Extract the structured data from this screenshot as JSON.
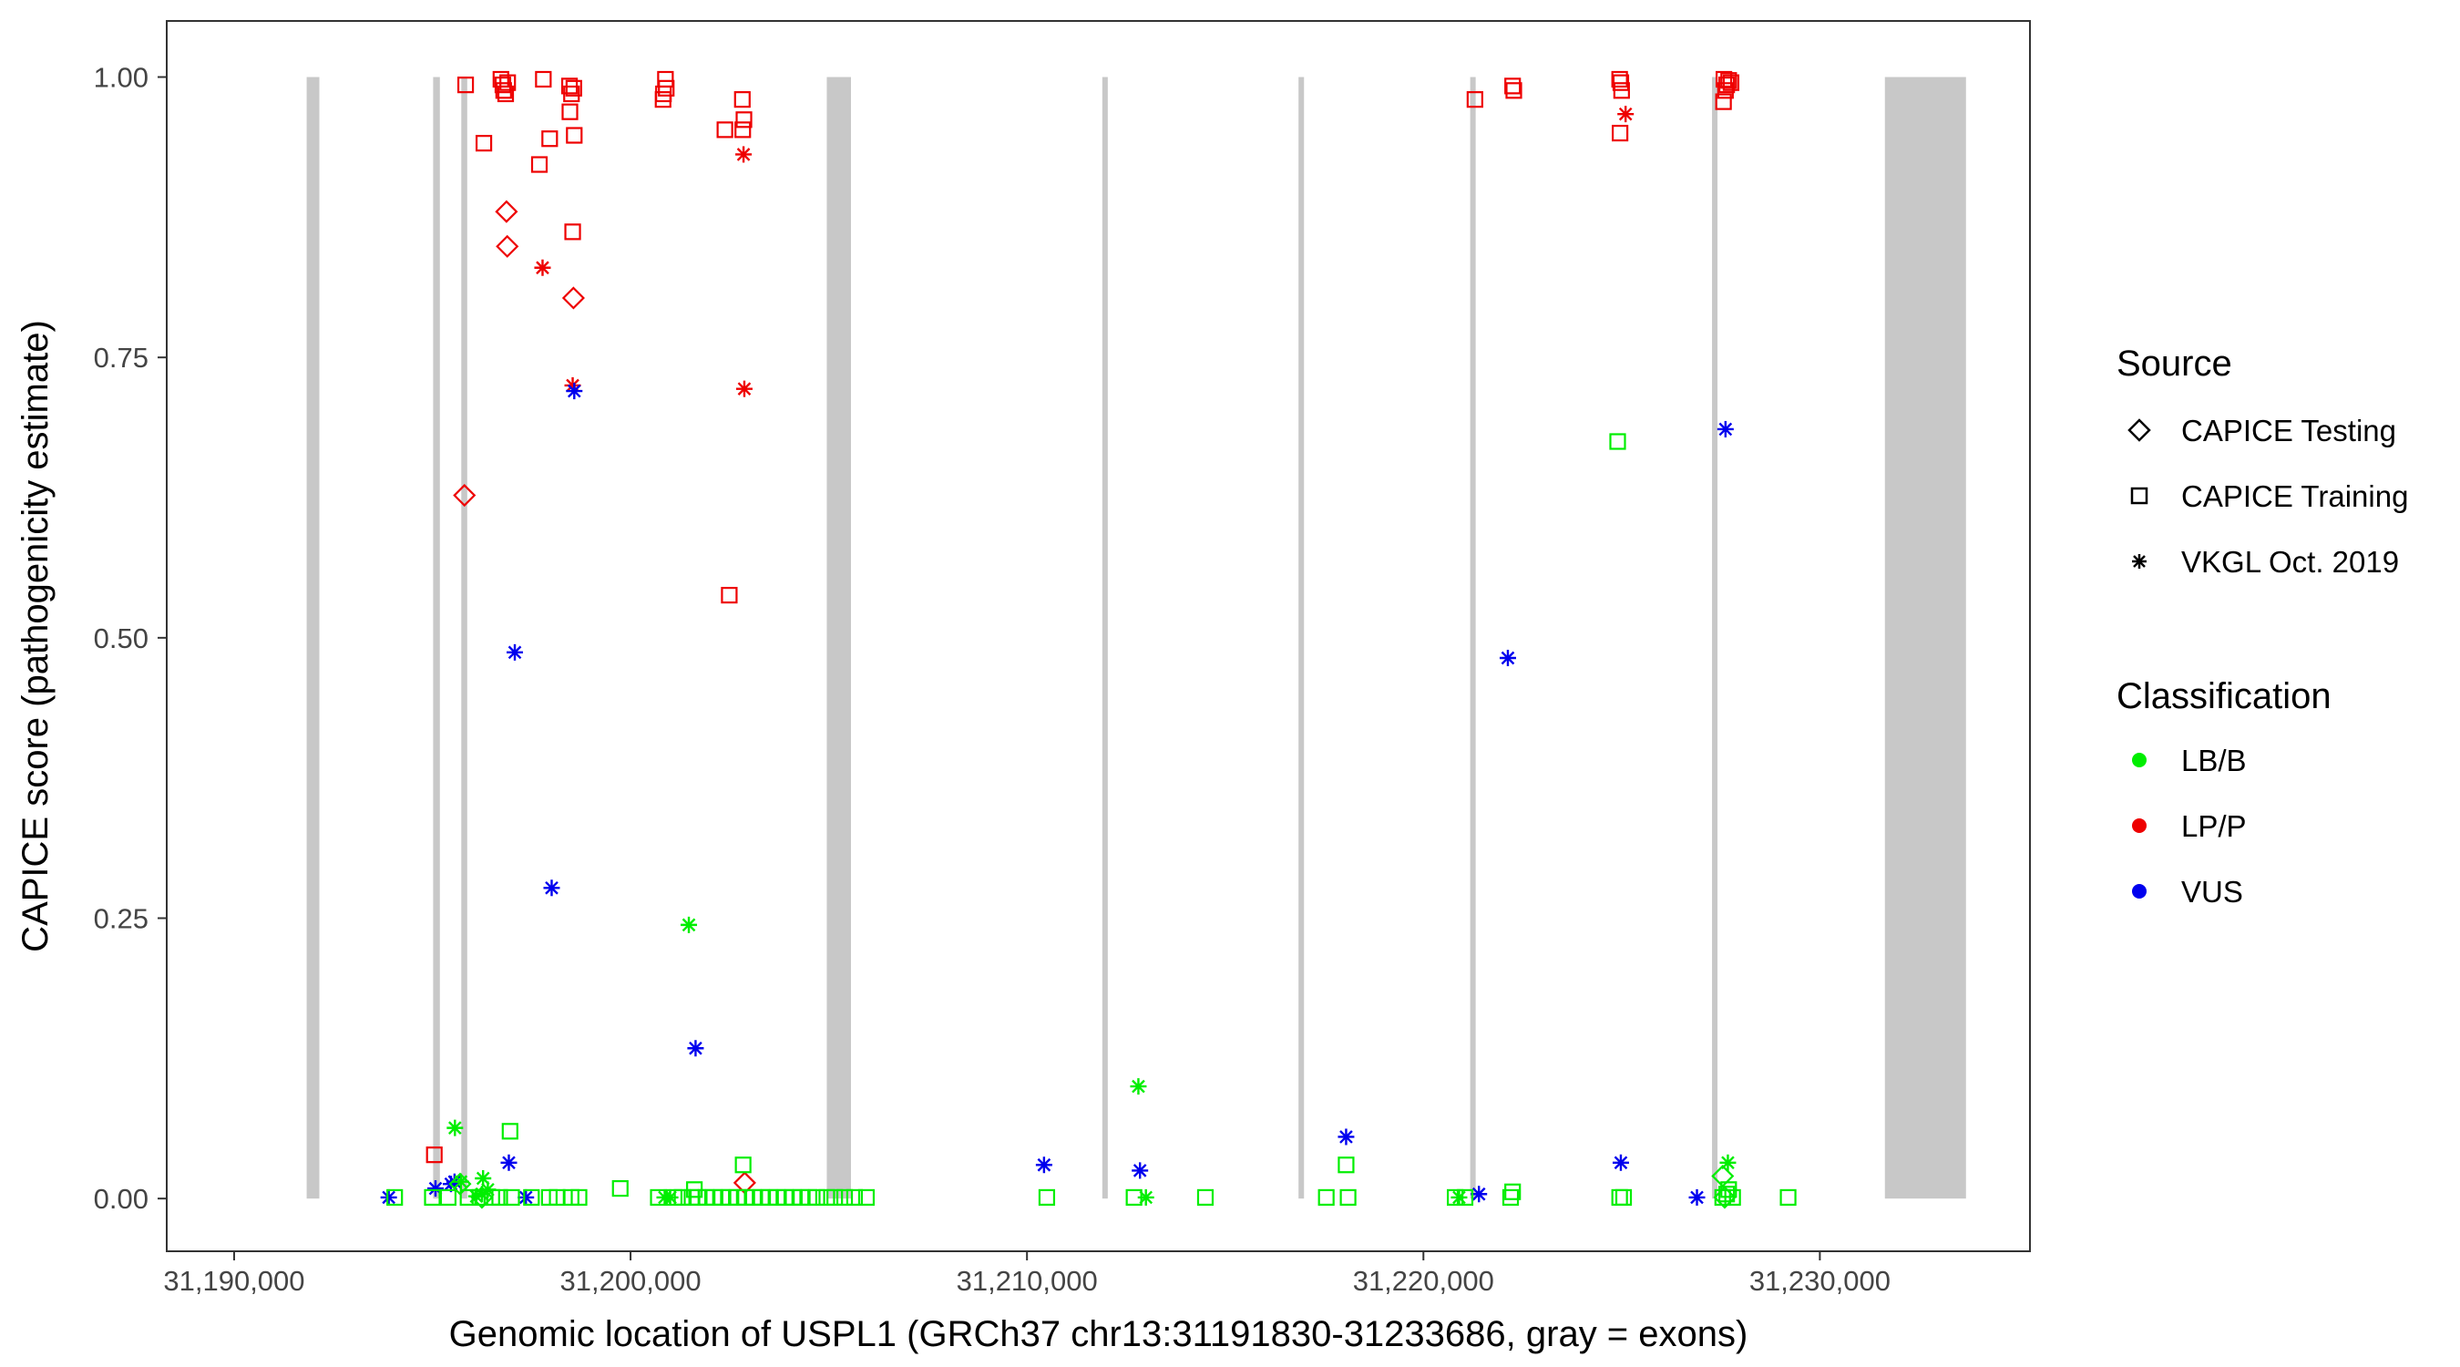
{
  "chart_data": {
    "type": "scatter",
    "xlabel": "Genomic location of USPL1 (GRCh37 chr13:31191830-31233686, gray = exons)",
    "ylabel": "CAPICE score (pathogenicity estimate)",
    "xlim": [
      31188300,
      31235300
    ],
    "ylim": [
      -0.047,
      1.05
    ],
    "x_ticks": [
      31190000,
      31200000,
      31210000,
      31220000,
      31230000
    ],
    "x_tick_labels": [
      "31,190,000",
      "31,200,000",
      "31,210,000",
      "31,220,000",
      "31,230,000"
    ],
    "y_ticks": [
      0,
      0.25,
      0.5,
      0.75,
      1
    ],
    "y_tick_labels": [
      "0.00",
      "0.25",
      "0.50",
      "0.75",
      "1.00"
    ],
    "exon_range": [
      0,
      1
    ],
    "exons": [
      {
        "start": 31191830,
        "end": 31192150
      },
      {
        "start": 31195020,
        "end": 31195190
      },
      {
        "start": 31195730,
        "end": 31195880
      },
      {
        "start": 31204950,
        "end": 31205560
      },
      {
        "start": 31211900,
        "end": 31212010
      },
      {
        "start": 31216850,
        "end": 31216970
      },
      {
        "start": 31221180,
        "end": 31221300
      },
      {
        "start": 31227280,
        "end": 31227400
      },
      {
        "start": 31231640,
        "end": 31233686
      }
    ],
    "legend": {
      "source_title": "Source",
      "source_items": [
        {
          "label": "CAPICE Testing",
          "shape": "diamond"
        },
        {
          "label": "CAPICE Training",
          "shape": "square"
        },
        {
          "label": "VKGL Oct. 2019",
          "shape": "asterisk"
        }
      ],
      "class_title": "Classification",
      "class_items": [
        {
          "label": "LB/B",
          "color": "#00ee00"
        },
        {
          "label": "LP/P",
          "color": "#ee0000"
        },
        {
          "label": "VUS",
          "color": "#0000ee"
        }
      ]
    },
    "series": [
      {
        "name": "CAPICE Training LP/P",
        "shape": "square",
        "color": "#ee0000",
        "points": [
          [
            31195840,
            0.993
          ],
          [
            31196300,
            0.941
          ],
          [
            31196730,
            0.998
          ],
          [
            31196780,
            0.993
          ],
          [
            31196800,
            0.988
          ],
          [
            31196850,
            0.985
          ],
          [
            31196900,
            0.995
          ],
          [
            31197700,
            0.922
          ],
          [
            31197800,
            0.998
          ],
          [
            31197960,
            0.945
          ],
          [
            31198460,
            0.992
          ],
          [
            31198470,
            0.969
          ],
          [
            31198510,
            0.985
          ],
          [
            31198570,
            0.99
          ],
          [
            31198580,
            0.948
          ],
          [
            31198540,
            0.862
          ],
          [
            31200880,
            0.998
          ],
          [
            31200900,
            0.99
          ],
          [
            31200830,
            0.985
          ],
          [
            31200820,
            0.98
          ],
          [
            31202380,
            0.953
          ],
          [
            31202820,
            0.98
          ],
          [
            31202860,
            0.962
          ],
          [
            31202830,
            0.953
          ],
          [
            31202490,
            0.538
          ],
          [
            31195050,
            0.039
          ],
          [
            31221300,
            0.98
          ],
          [
            31222250,
            0.992
          ],
          [
            31222280,
            0.988
          ],
          [
            31224950,
            0.998
          ],
          [
            31224980,
            0.995
          ],
          [
            31225000,
            0.988
          ],
          [
            31224960,
            0.95
          ],
          [
            31227580,
            0.998
          ],
          [
            31227650,
            0.993
          ],
          [
            31227700,
            0.997
          ],
          [
            31227760,
            0.995
          ],
          [
            31227570,
            0.978
          ],
          [
            31227620,
            0.988
          ]
        ]
      },
      {
        "name": "CAPICE Testing LP/P",
        "shape": "diamond",
        "color": "#ee0000",
        "points": [
          [
            31196870,
            0.88
          ],
          [
            31196890,
            0.849
          ],
          [
            31198560,
            0.803
          ],
          [
            31195810,
            0.627
          ],
          [
            31202880,
            0.014
          ]
        ]
      },
      {
        "name": "VKGL LP/P",
        "shape": "asterisk",
        "color": "#ee0000",
        "points": [
          [
            31197780,
            0.83
          ],
          [
            31198540,
            0.725
          ],
          [
            31202850,
            0.931
          ],
          [
            31202870,
            0.722
          ],
          [
            31225100,
            0.967
          ]
        ]
      },
      {
        "name": "VKGL VUS",
        "shape": "asterisk",
        "color": "#0000ee",
        "points": [
          [
            31198580,
            0.72
          ],
          [
            31197080,
            0.487
          ],
          [
            31198010,
            0.277
          ],
          [
            31201640,
            0.134
          ],
          [
            31196930,
            0.032
          ],
          [
            31195470,
            0.013
          ],
          [
            31195560,
            0.015
          ],
          [
            31195080,
            0.009
          ],
          [
            31193900,
            0.001
          ],
          [
            31197360,
            0.001
          ],
          [
            31210430,
            0.03
          ],
          [
            31212850,
            0.025
          ],
          [
            31218050,
            0.055
          ],
          [
            31222130,
            0.482
          ],
          [
            31221400,
            0.004
          ],
          [
            31224980,
            0.032
          ],
          [
            31226900,
            0.001
          ],
          [
            31227620,
            0.686
          ]
        ]
      },
      {
        "name": "VKGL LB/B",
        "shape": "asterisk",
        "color": "#00ee00",
        "points": [
          [
            31201470,
            0.244
          ],
          [
            31212810,
            0.1
          ],
          [
            31195570,
            0.063
          ],
          [
            31195720,
            0.015
          ],
          [
            31196280,
            0.018
          ],
          [
            31196400,
            0.008
          ],
          [
            31196250,
            0.004
          ],
          [
            31196110,
            0.002
          ],
          [
            31200860,
            0.001
          ],
          [
            31201000,
            0.001
          ],
          [
            31213000,
            0.001
          ],
          [
            31220900,
            0.001
          ],
          [
            31227680,
            0.032
          ]
        ]
      },
      {
        "name": "CAPICE Training LB/B",
        "shape": "square",
        "color": "#00ee00",
        "points": [
          [
            31196960,
            0.06
          ],
          [
            31199740,
            0.009
          ],
          [
            31201610,
            0.008
          ],
          [
            31202840,
            0.03
          ],
          [
            31218050,
            0.03
          ],
          [
            31224900,
            0.675
          ],
          [
            31222250,
            0.006
          ],
          [
            31227700,
            0.008
          ],
          [
            31227650,
            0.004
          ],
          [
            31194050,
            0.001
          ],
          [
            31195000,
            0.001
          ],
          [
            31195400,
            0.001
          ],
          [
            31195900,
            0.001
          ],
          [
            31196200,
            0.001
          ],
          [
            31196500,
            0.001
          ],
          [
            31196700,
            0.001
          ],
          [
            31197000,
            0.001
          ],
          [
            31197500,
            0.001
          ],
          [
            31197950,
            0.001
          ],
          [
            31198150,
            0.001
          ],
          [
            31198500,
            0.001
          ],
          [
            31198700,
            0.001
          ],
          [
            31200700,
            0.001
          ],
          [
            31201100,
            0.001
          ],
          [
            31201300,
            0.001
          ],
          [
            31201550,
            0.001
          ],
          [
            31201700,
            0.001
          ],
          [
            31201900,
            0.001
          ],
          [
            31202100,
            0.001
          ],
          [
            31202300,
            0.001
          ],
          [
            31202500,
            0.001
          ],
          [
            31202700,
            0.001
          ],
          [
            31202900,
            0.001
          ],
          [
            31203100,
            0.001
          ],
          [
            31203300,
            0.001
          ],
          [
            31203500,
            0.001
          ],
          [
            31203700,
            0.001
          ],
          [
            31203900,
            0.001
          ],
          [
            31204100,
            0.001
          ],
          [
            31204300,
            0.001
          ],
          [
            31204500,
            0.001
          ],
          [
            31204700,
            0.001
          ],
          [
            31204950,
            0.001
          ],
          [
            31205150,
            0.001
          ],
          [
            31205400,
            0.001
          ],
          [
            31205650,
            0.001
          ],
          [
            31205950,
            0.001
          ],
          [
            31210500,
            0.001
          ],
          [
            31212700,
            0.001
          ],
          [
            31214500,
            0.001
          ],
          [
            31217550,
            0.001
          ],
          [
            31218100,
            0.001
          ],
          [
            31220800,
            0.001
          ],
          [
            31221050,
            0.001
          ],
          [
            31222200,
            0.001
          ],
          [
            31224950,
            0.001
          ],
          [
            31225050,
            0.001
          ],
          [
            31227550,
            0.001
          ],
          [
            31227800,
            0.001
          ],
          [
            31229200,
            0.001
          ]
        ]
      },
      {
        "name": "CAPICE Testing LB/B",
        "shape": "diamond",
        "color": "#00ee00",
        "points": [
          [
            31195700,
            0.013
          ],
          [
            31227550,
            0.02
          ],
          [
            31227600,
            0.001
          ],
          [
            31196250,
            0.001
          ]
        ]
      }
    ]
  }
}
